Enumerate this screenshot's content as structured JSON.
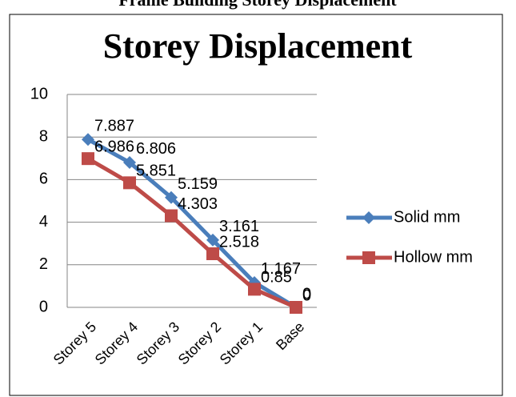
{
  "heading": "Frame Building Storey Displacement",
  "chart_data": {
    "type": "line",
    "title": "Storey Displacement",
    "categories": [
      "Storey 5",
      "Storey 4",
      "Storey 3",
      "Storey 2",
      "Storey 1",
      "Base"
    ],
    "series": [
      {
        "name": "Solid mm",
        "color": "#4a7ebb",
        "values": [
          7.887,
          6.806,
          5.159,
          3.161,
          1.167,
          0
        ]
      },
      {
        "name": "Hollow mm",
        "color": "#be4b48",
        "values": [
          6.986,
          5.851,
          4.303,
          2.518,
          0.85,
          0
        ]
      }
    ],
    "ylim": [
      0,
      10
    ],
    "yticks": [
      0,
      2,
      4,
      6,
      8,
      10
    ],
    "grid": true,
    "legend": "right"
  }
}
